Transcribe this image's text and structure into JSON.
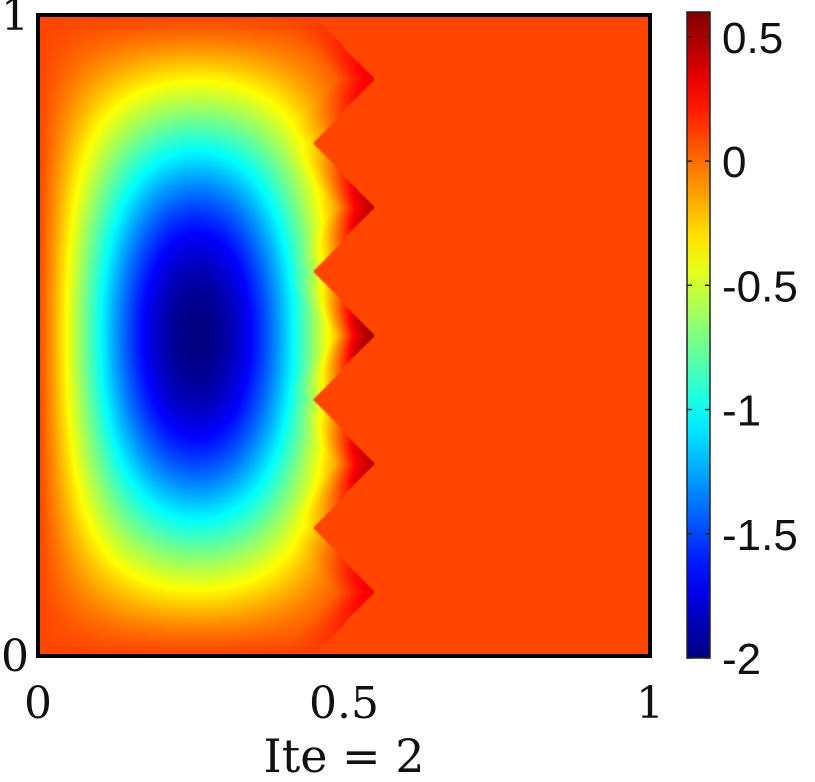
{
  "chart_data": {
    "type": "heatmap",
    "title": "",
    "xlabel": "Ite = 2",
    "ylabel": "",
    "xlim": [
      0,
      1
    ],
    "ylim": [
      0,
      1
    ],
    "x_ticks": [
      {
        "value": 0,
        "label": "0"
      },
      {
        "value": 0.5,
        "label": "0.5"
      },
      {
        "value": 1,
        "label": "1"
      }
    ],
    "y_ticks": [
      {
        "value": 0,
        "label": "0"
      },
      {
        "value": 1,
        "label": "1"
      }
    ],
    "colorbar": {
      "range": [
        -2,
        0.6
      ],
      "colormap": "jet",
      "ticks": [
        {
          "value": 0.5,
          "label": "0.5"
        },
        {
          "value": 0,
          "label": "0"
        },
        {
          "value": -0.5,
          "label": "-0.5"
        },
        {
          "value": -1,
          "label": "-1"
        },
        {
          "value": -1.5,
          "label": "-1.5"
        },
        {
          "value": -2,
          "label": "-2"
        }
      ]
    },
    "field": {
      "background_value": 0.1,
      "min_value": -2.0,
      "min_location": [
        0.25,
        0.5
      ],
      "max_value": 0.6,
      "interface_x_min": 0.45,
      "interface_x_max": 0.55,
      "zigzag_peaks_y": [
        0.1,
        0.3,
        0.5,
        0.7,
        0.9
      ],
      "zigzag_valleys_y": [
        0.0,
        0.2,
        0.4,
        0.6,
        0.8,
        1.0
      ],
      "peak_values": [
        0.35,
        0.5,
        0.6,
        0.5,
        0.35
      ]
    },
    "grid": false
  }
}
